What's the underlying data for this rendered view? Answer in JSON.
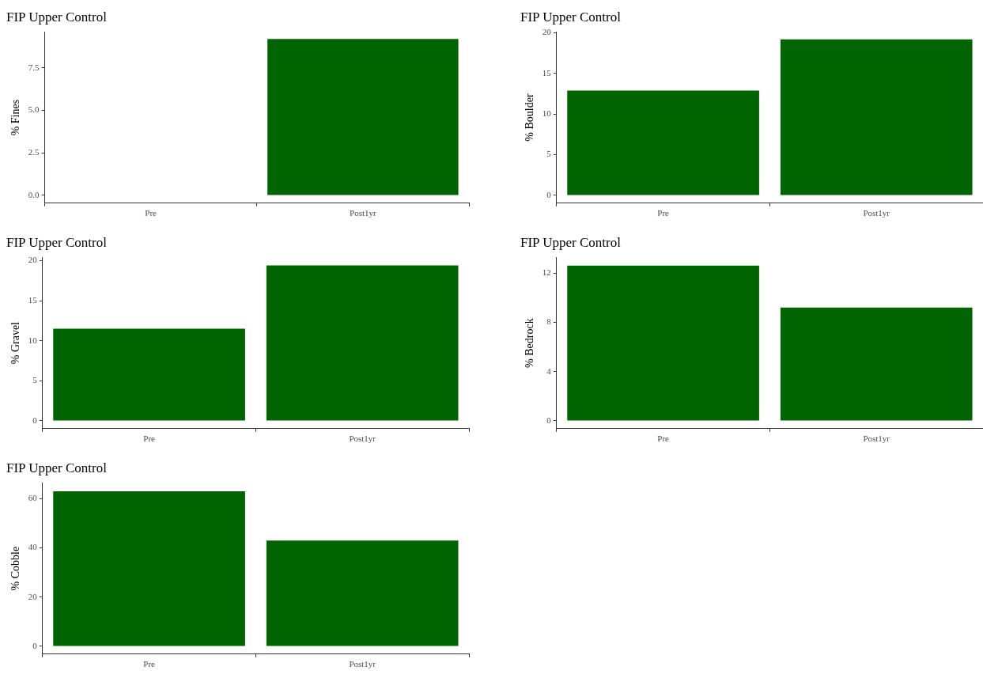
{
  "chart_data": [
    {
      "type": "bar",
      "title": "FIP Upper Control",
      "ylabel": "% Fines",
      "categories": [
        "Pre",
        "Post1yr"
      ],
      "values": [
        0,
        9.2
      ],
      "color": "#006400",
      "ylim": [
        -0.46,
        9.61
      ],
      "yticks": [
        {
          "value": 0,
          "label": "0.0"
        },
        {
          "value": 2.5,
          "label": "2.5"
        },
        {
          "value": 5,
          "label": "5.0"
        },
        {
          "value": 7.5,
          "label": "7.5"
        }
      ],
      "grid": false,
      "legend": false
    },
    {
      "type": "bar",
      "title": "FIP Upper Control",
      "ylabel": "% Boulder",
      "categories": [
        "Pre",
        "Post1yr"
      ],
      "values": [
        12.9,
        19.2
      ],
      "color": "#006400",
      "ylim": [
        -0.96,
        20.1
      ],
      "yticks": [
        0,
        5,
        10,
        15,
        20
      ],
      "grid": false,
      "legend": false
    },
    {
      "type": "bar",
      "title": "FIP Upper Control",
      "ylabel": "% Gravel",
      "categories": [
        "Pre",
        "Post1yr"
      ],
      "values": [
        11.5,
        19.4
      ],
      "color": "#006400",
      "ylim": [
        -0.97,
        20.4
      ],
      "yticks": [
        0,
        5,
        10,
        15,
        20
      ],
      "grid": false,
      "legend": false
    },
    {
      "type": "bar",
      "title": "FIP Upper Control",
      "ylabel": "% Bedrock",
      "categories": [
        "Pre",
        "Post1yr"
      ],
      "values": [
        12.6,
        9.2
      ],
      "color": "#006400",
      "ylim": [
        -0.63,
        13.26
      ],
      "yticks": [
        0,
        4,
        8,
        12
      ],
      "grid": false,
      "legend": false
    },
    {
      "type": "bar",
      "title": "FIP Upper Control",
      "ylabel": "% Cobble",
      "categories": [
        "Pre",
        "Post1yr"
      ],
      "values": [
        63,
        43
      ],
      "color": "#006400",
      "ylim": [
        -3.16,
        66.4
      ],
      "yticks": [
        0,
        20,
        40,
        60
      ],
      "grid": false,
      "legend": false
    }
  ]
}
